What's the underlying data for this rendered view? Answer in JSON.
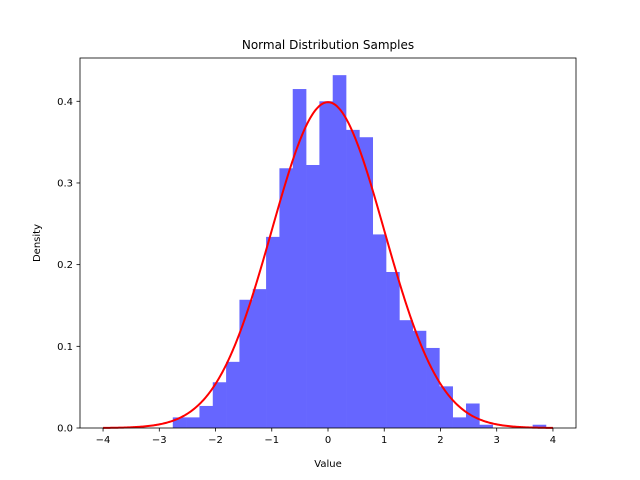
{
  "chart_data": {
    "type": "bar",
    "title": "Normal Distribution Samples",
    "xlabel": "Value",
    "ylabel": "Density",
    "xlim": [
      -4.41,
      4.41
    ],
    "ylim": [
      0,
      0.453
    ],
    "grid": false,
    "legend": "none",
    "xticks": [
      -4,
      -3,
      -2,
      -1,
      0,
      1,
      2,
      3,
      4
    ],
    "xtick_labels": [
      "−4",
      "−3",
      "−2",
      "−1",
      "0",
      "1",
      "2",
      "3",
      "4"
    ],
    "yticks": [
      0.0,
      0.1,
      0.2,
      0.3,
      0.4
    ],
    "ytick_labels": [
      "0.0",
      "0.1",
      "0.2",
      "0.3",
      "0.4"
    ],
    "histogram": {
      "bin_start": -2.76,
      "bin_width": 0.237,
      "densities": [
        0.013,
        0.013,
        0.027,
        0.056,
        0.081,
        0.157,
        0.17,
        0.234,
        0.318,
        0.415,
        0.322,
        0.4,
        0.432,
        0.365,
        0.356,
        0.237,
        0.191,
        0.132,
        0.119,
        0.098,
        0.051,
        0.013,
        0.03,
        0.004,
        0,
        0,
        0,
        0.004
      ],
      "color": "#6666ff"
    },
    "curve": {
      "type": "line",
      "function": "normal pdf",
      "mean": 0,
      "std": 1,
      "x_range": [
        -4,
        4
      ],
      "color": "#ff0000"
    }
  }
}
